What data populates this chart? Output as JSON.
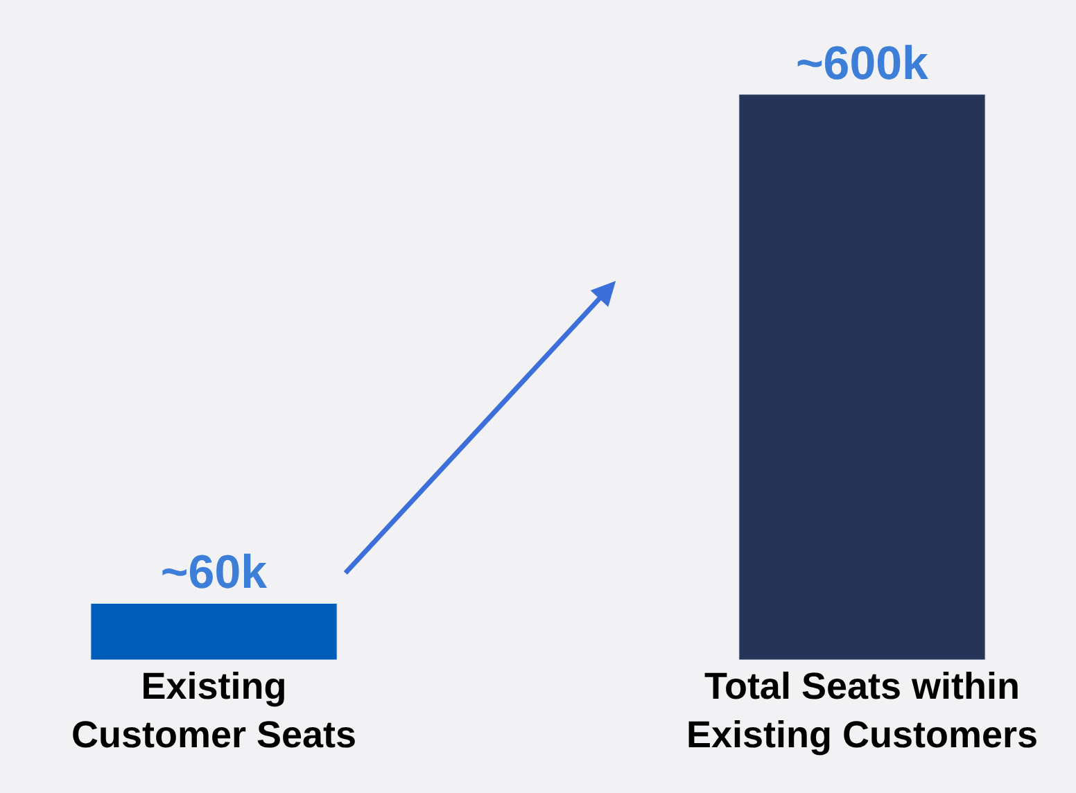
{
  "chart_data": {
    "type": "bar",
    "categories": [
      "Existing\nCustomer Seats",
      "Total Seats within\nExisting Customers"
    ],
    "values": [
      60,
      600
    ],
    "colors": [
      "#005cb9",
      "#253457"
    ],
    "value_labels": [
      "~60k",
      "~600k"
    ],
    "legend": false
  }
}
